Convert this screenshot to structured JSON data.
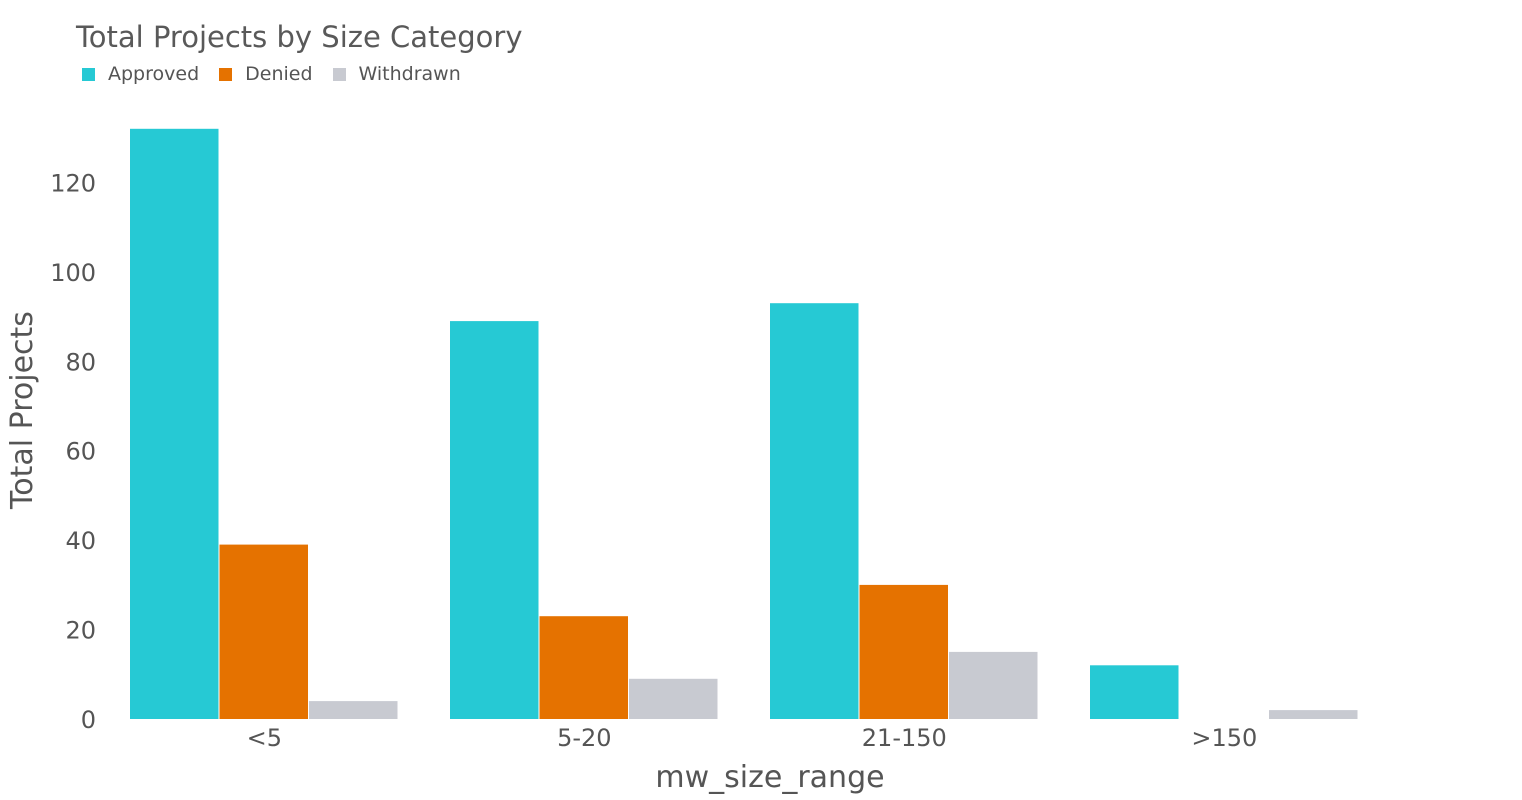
{
  "chart_data": {
    "type": "bar",
    "title": "Total Projects by Size Category",
    "xlabel": "mw_size_range",
    "ylabel": "Total Projects",
    "categories": [
      "<5",
      "5-20",
      "21-150",
      ">150"
    ],
    "series": [
      {
        "name": "Approved",
        "color": "#26c9d4",
        "values": [
          132,
          89,
          93,
          12
        ]
      },
      {
        "name": "Denied",
        "color": "#e57200",
        "values": [
          39,
          23,
          30,
          0
        ]
      },
      {
        "name": "Withdrawn",
        "color": "#c8cad1",
        "values": [
          4,
          9,
          15,
          2
        ]
      }
    ],
    "yticks": [
      0,
      20,
      40,
      60,
      80,
      100,
      120
    ],
    "ytick_labels": [
      "0",
      "20",
      "40",
      "60",
      "80",
      "100",
      "120"
    ],
    "ylim": [
      0,
      138
    ],
    "grid": false,
    "legend_position": "top-left"
  }
}
